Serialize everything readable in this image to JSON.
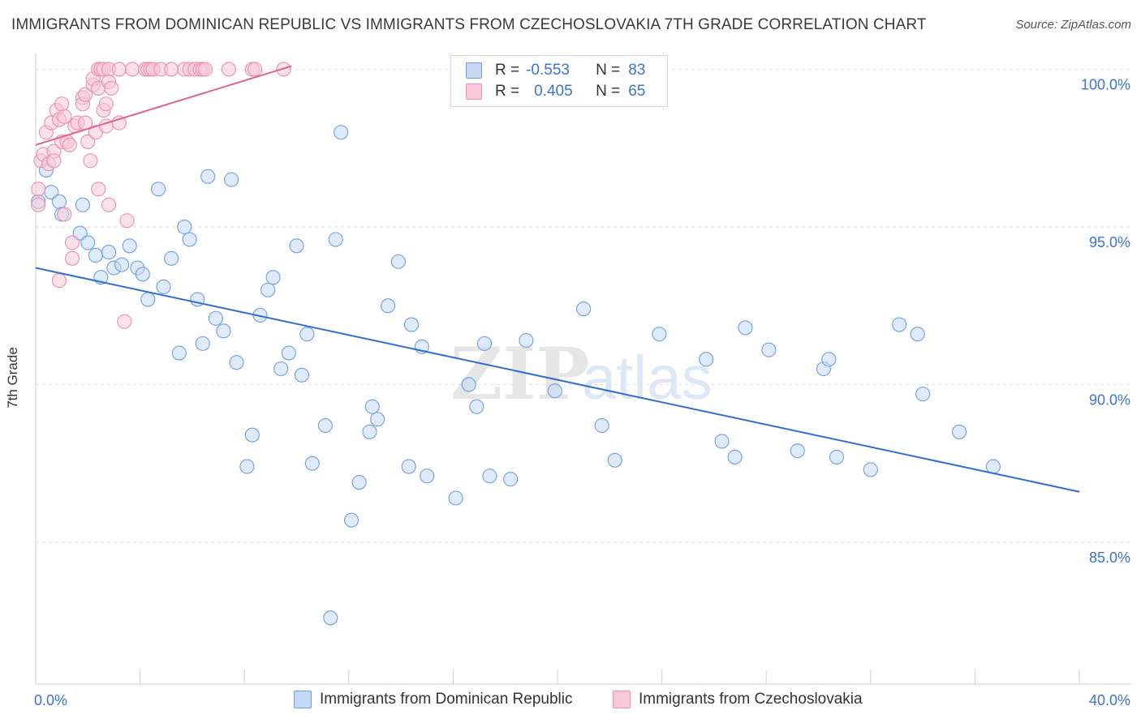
{
  "title": "IMMIGRANTS FROM DOMINICAN REPUBLIC VS IMMIGRANTS FROM CZECHOSLOVAKIA 7TH GRADE CORRELATION CHART",
  "source": "Source: ZipAtlas.com",
  "watermark": {
    "zip": "ZIP",
    "atlas": "atlas"
  },
  "legend": {
    "r_label": "R =",
    "n_label": "N =",
    "rows": [
      {
        "r": "-0.553",
        "n": "83"
      },
      {
        "r": "0.405",
        "n": "65"
      }
    ]
  },
  "chart_data": {
    "type": "scatter",
    "title": "IMMIGRANTS FROM DOMINICAN REPUBLIC VS IMMIGRANTS FROM CZECHOSLOVAKIA 7TH GRADE CORRELATION CHART",
    "xlabel": "",
    "ylabel": "7th Grade",
    "xlim": [
      0,
      40
    ],
    "ylim": [
      80.5,
      100.5
    ],
    "x_tick_labels": [
      "0.0%",
      "40.0%"
    ],
    "y_ticks": [
      85,
      90,
      95,
      100
    ],
    "y_tick_labels": [
      "85.0%",
      "90.0%",
      "95.0%",
      "100.0%"
    ],
    "grid": true,
    "legend_placement": "top-center",
    "series": [
      {
        "name": "Immigrants from Dominican Republic",
        "color": "#6f9fe0",
        "fill": "#c5d9f5",
        "r": -0.553,
        "n": 83,
        "trend": {
          "x": [
            0,
            40
          ],
          "y": [
            93.7,
            86.6
          ]
        },
        "points": [
          [
            0.1,
            95.8
          ],
          [
            0.4,
            96.8
          ],
          [
            0.6,
            96.1
          ],
          [
            0.9,
            95.8
          ],
          [
            1.0,
            95.4
          ],
          [
            1.8,
            95.7
          ],
          [
            1.7,
            94.8
          ],
          [
            2.0,
            94.5
          ],
          [
            2.3,
            94.1
          ],
          [
            2.5,
            93.4
          ],
          [
            2.8,
            94.2
          ],
          [
            3.0,
            93.7
          ],
          [
            3.3,
            93.8
          ],
          [
            3.6,
            94.4
          ],
          [
            3.9,
            93.7
          ],
          [
            4.1,
            93.5
          ],
          [
            4.3,
            92.7
          ],
          [
            4.7,
            96.2
          ],
          [
            4.9,
            93.1
          ],
          [
            5.2,
            94.0
          ],
          [
            5.5,
            91.0
          ],
          [
            5.7,
            95.0
          ],
          [
            5.9,
            94.6
          ],
          [
            6.2,
            92.7
          ],
          [
            6.4,
            91.3
          ],
          [
            6.6,
            96.6
          ],
          [
            6.9,
            92.1
          ],
          [
            7.2,
            91.7
          ],
          [
            7.5,
            96.5
          ],
          [
            7.7,
            90.7
          ],
          [
            8.1,
            87.4
          ],
          [
            8.3,
            88.4
          ],
          [
            8.6,
            92.2
          ],
          [
            8.9,
            93.0
          ],
          [
            9.1,
            93.4
          ],
          [
            9.4,
            90.5
          ],
          [
            9.7,
            91.0
          ],
          [
            10.0,
            94.4
          ],
          [
            10.2,
            90.3
          ],
          [
            10.4,
            91.6
          ],
          [
            10.6,
            87.5
          ],
          [
            11.1,
            88.7
          ],
          [
            11.3,
            82.6
          ],
          [
            11.5,
            94.6
          ],
          [
            11.7,
            98.0
          ],
          [
            12.1,
            85.7
          ],
          [
            12.4,
            86.9
          ],
          [
            12.8,
            88.5
          ],
          [
            12.9,
            89.3
          ],
          [
            13.1,
            88.9
          ],
          [
            13.5,
            92.5
          ],
          [
            13.9,
            93.9
          ],
          [
            14.3,
            87.4
          ],
          [
            14.4,
            91.9
          ],
          [
            14.8,
            91.2
          ],
          [
            15.0,
            87.1
          ],
          [
            16.1,
            86.4
          ],
          [
            16.6,
            90.0
          ],
          [
            16.9,
            89.3
          ],
          [
            17.2,
            91.3
          ],
          [
            17.4,
            87.1
          ],
          [
            18.2,
            87.0
          ],
          [
            18.8,
            91.4
          ],
          [
            19.9,
            89.8
          ],
          [
            21.0,
            92.4
          ],
          [
            21.7,
            88.7
          ],
          [
            22.2,
            87.6
          ],
          [
            23.9,
            91.6
          ],
          [
            25.7,
            90.8
          ],
          [
            26.3,
            88.2
          ],
          [
            26.8,
            87.7
          ],
          [
            27.2,
            91.8
          ],
          [
            28.1,
            91.1
          ],
          [
            29.2,
            87.9
          ],
          [
            30.2,
            90.5
          ],
          [
            30.4,
            90.8
          ],
          [
            30.7,
            87.7
          ],
          [
            32.0,
            87.3
          ],
          [
            33.1,
            91.9
          ],
          [
            33.8,
            91.6
          ],
          [
            34.0,
            89.7
          ],
          [
            35.4,
            88.5
          ],
          [
            36.7,
            87.4
          ]
        ]
      },
      {
        "name": "Immigrants from Czechoslovakia",
        "color": "#ec8fb0",
        "fill": "#f8c8d8",
        "r": 0.405,
        "n": 65,
        "trend": {
          "x": [
            0,
            9.8
          ],
          "y": [
            97.6,
            100.1
          ]
        },
        "points": [
          [
            0.1,
            96.2
          ],
          [
            0.1,
            95.7
          ],
          [
            0.2,
            97.1
          ],
          [
            0.3,
            97.3
          ],
          [
            0.4,
            98.0
          ],
          [
            0.5,
            97.0
          ],
          [
            0.6,
            98.3
          ],
          [
            0.7,
            97.4
          ],
          [
            0.7,
            97.1
          ],
          [
            0.8,
            98.7
          ],
          [
            0.9,
            98.4
          ],
          [
            0.9,
            93.3
          ],
          [
            1.0,
            98.9
          ],
          [
            1.0,
            97.7
          ],
          [
            1.1,
            98.5
          ],
          [
            1.1,
            95.4
          ],
          [
            1.2,
            97.7
          ],
          [
            1.3,
            97.6
          ],
          [
            1.4,
            94.0
          ],
          [
            1.4,
            94.5
          ],
          [
            1.5,
            98.2
          ],
          [
            1.6,
            98.3
          ],
          [
            1.8,
            99.1
          ],
          [
            1.8,
            98.9
          ],
          [
            1.9,
            98.3
          ],
          [
            1.9,
            99.2
          ],
          [
            2.0,
            97.7
          ],
          [
            2.1,
            97.1
          ],
          [
            2.2,
            99.5
          ],
          [
            2.2,
            99.7
          ],
          [
            2.3,
            98.0
          ],
          [
            2.4,
            99.4
          ],
          [
            2.4,
            100.0
          ],
          [
            2.4,
            96.2
          ],
          [
            2.5,
            100.0
          ],
          [
            2.6,
            100.0
          ],
          [
            2.6,
            98.7
          ],
          [
            2.7,
            98.9
          ],
          [
            2.7,
            98.2
          ],
          [
            2.8,
            95.7
          ],
          [
            2.8,
            100.0
          ],
          [
            2.8,
            99.6
          ],
          [
            2.9,
            99.4
          ],
          [
            3.2,
            100.0
          ],
          [
            3.2,
            98.3
          ],
          [
            3.4,
            92.0
          ],
          [
            3.5,
            95.2
          ],
          [
            3.7,
            100.0
          ],
          [
            4.2,
            100.0
          ],
          [
            4.3,
            100.0
          ],
          [
            4.4,
            100.0
          ],
          [
            4.5,
            100.0
          ],
          [
            4.8,
            100.0
          ],
          [
            5.2,
            100.0
          ],
          [
            5.7,
            100.0
          ],
          [
            5.9,
            100.0
          ],
          [
            6.1,
            100.0
          ],
          [
            6.3,
            100.0
          ],
          [
            6.4,
            100.0
          ],
          [
            6.5,
            100.0
          ],
          [
            7.4,
            100.0
          ],
          [
            8.3,
            100.0
          ],
          [
            8.4,
            100.0
          ],
          [
            9.5,
            100.0
          ],
          [
            18.1,
            100.0
          ]
        ]
      }
    ]
  }
}
